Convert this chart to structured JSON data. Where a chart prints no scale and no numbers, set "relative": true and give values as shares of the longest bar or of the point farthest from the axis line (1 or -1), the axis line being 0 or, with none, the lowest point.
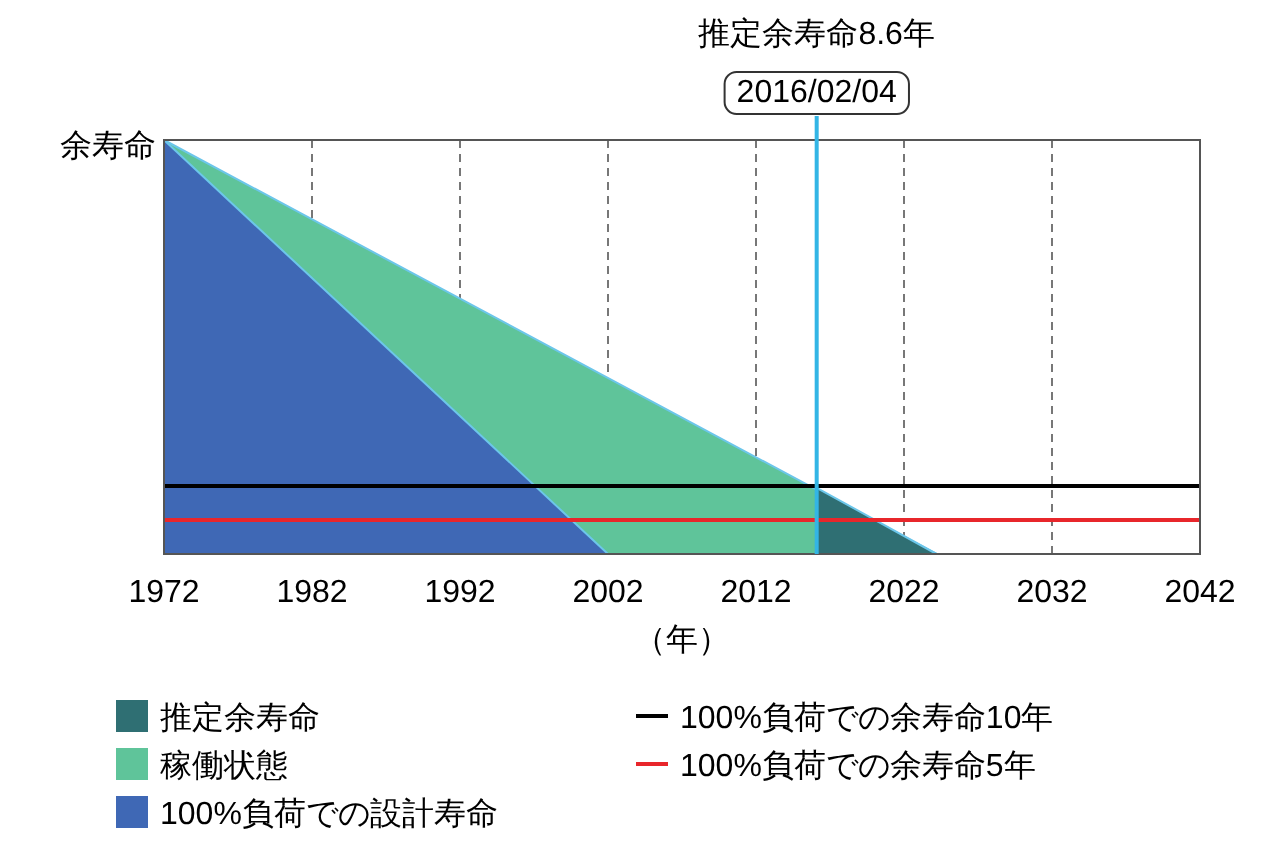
{
  "chart_data": {
    "type": "area",
    "relative": true,
    "ylabel": "余寿命",
    "xlabel": "（年）",
    "xlim": [
      1972,
      2042
    ],
    "xticks": [
      1972,
      1982,
      1992,
      2002,
      2012,
      2022,
      2032,
      2042
    ],
    "grid": "x",
    "legend": "bottom",
    "series": [
      {
        "name": "推定余寿命",
        "color": "#2f6f73",
        "x": [
          2016.1,
          2024.2
        ],
        "values": [
          0.16,
          0
        ]
      },
      {
        "name": "稼働状態",
        "color": "#5fc49a",
        "x": [
          1972,
          2024.2
        ],
        "values": [
          1,
          0
        ]
      },
      {
        "name": "100%負荷での設計寿命",
        "color": "#3f68b5",
        "x": [
          1972,
          2002
        ],
        "values": [
          1,
          0
        ]
      },
      {
        "name": "100%負荷での余寿命10年",
        "type": "line",
        "color": "#000000",
        "x": [
          1972,
          2042
        ],
        "values": [
          0.164,
          0.164
        ]
      },
      {
        "name": "100%負荷での余寿命5年",
        "type": "line",
        "color": "#e8262b",
        "x": [
          1972,
          2042
        ],
        "values": [
          0.082,
          0.082
        ]
      }
    ],
    "ref_lines": [
      {
        "axis": "x",
        "value": 2016.1,
        "label": "2016/02/04",
        "color": "#33b5e5"
      }
    ],
    "annotations": [
      "推定余寿命8.6年"
    ]
  }
}
